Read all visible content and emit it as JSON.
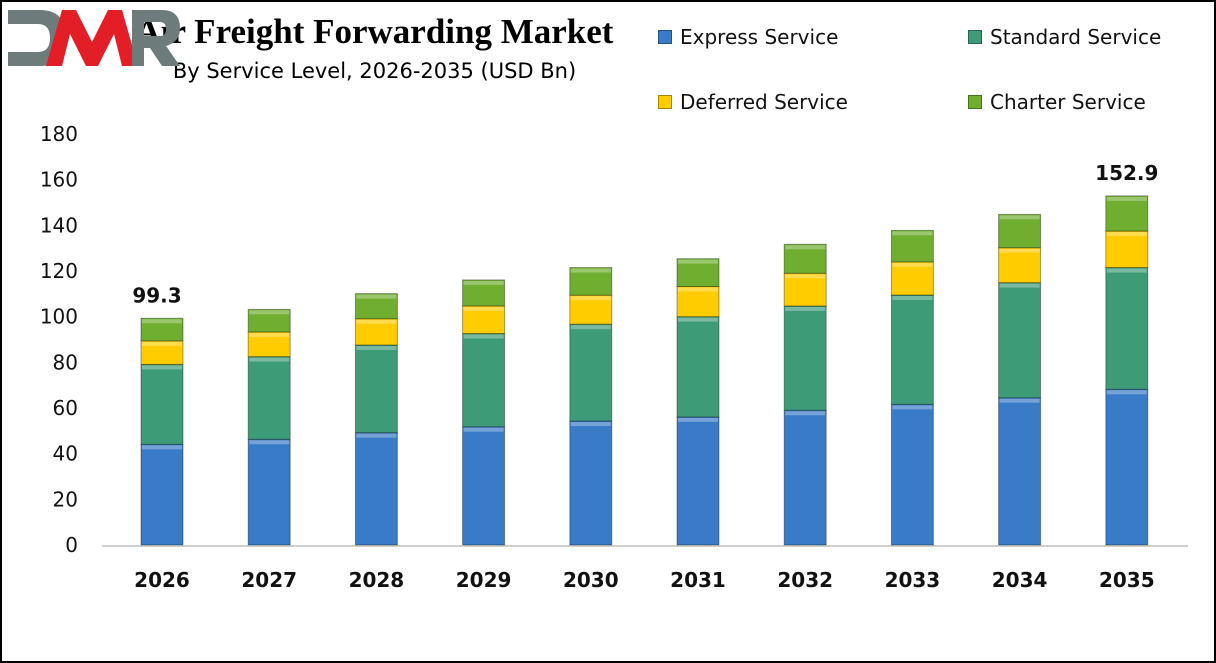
{
  "chart_data": {
    "type": "bar",
    "stacked": true,
    "title": "Air Freight Forwarding Market",
    "subtitle": "By Service Level, 2026-2035 (USD Bn)",
    "xlabel": "",
    "ylabel": "",
    "ylim": [
      0,
      180
    ],
    "yticks": [
      0,
      20,
      40,
      60,
      80,
      100,
      120,
      140,
      160,
      180
    ],
    "grid": false,
    "legend_position": "top-right",
    "categories": [
      "2026",
      "2027",
      "2028",
      "2029",
      "2030",
      "2031",
      "2032",
      "2033",
      "2034",
      "2035"
    ],
    "series": [
      {
        "name": "Express Service",
        "color": "#3A7BC8",
        "values": [
          44.1,
          46.3,
          49.2,
          51.8,
          54.3,
          56.1,
          59.0,
          61.6,
          64.5,
          68.2
        ]
      },
      {
        "name": "Standard Service",
        "color": "#3E9B78",
        "values": [
          35.0,
          36.2,
          38.4,
          40.8,
          42.4,
          43.9,
          45.7,
          47.9,
          50.4,
          53.3
        ]
      },
      {
        "name": "Deferred Service",
        "color": "#FFCC00",
        "values": [
          10.3,
          10.8,
          11.5,
          12.1,
          12.7,
          13.2,
          14.3,
          14.5,
          15.3,
          16.0
        ]
      },
      {
        "name": "Charter Service",
        "color": "#6FAE2E",
        "values": [
          9.9,
          9.9,
          11.0,
          11.4,
          12.1,
          12.2,
          12.7,
          13.8,
          14.6,
          15.4
        ]
      }
    ],
    "data_labels": [
      {
        "category": "2026",
        "text": "99.3"
      },
      {
        "category": "2035",
        "text": "152.9"
      }
    ]
  },
  "logo": {
    "text": "DMR",
    "colors": [
      "#6E7B7B",
      "#E41E26"
    ]
  }
}
